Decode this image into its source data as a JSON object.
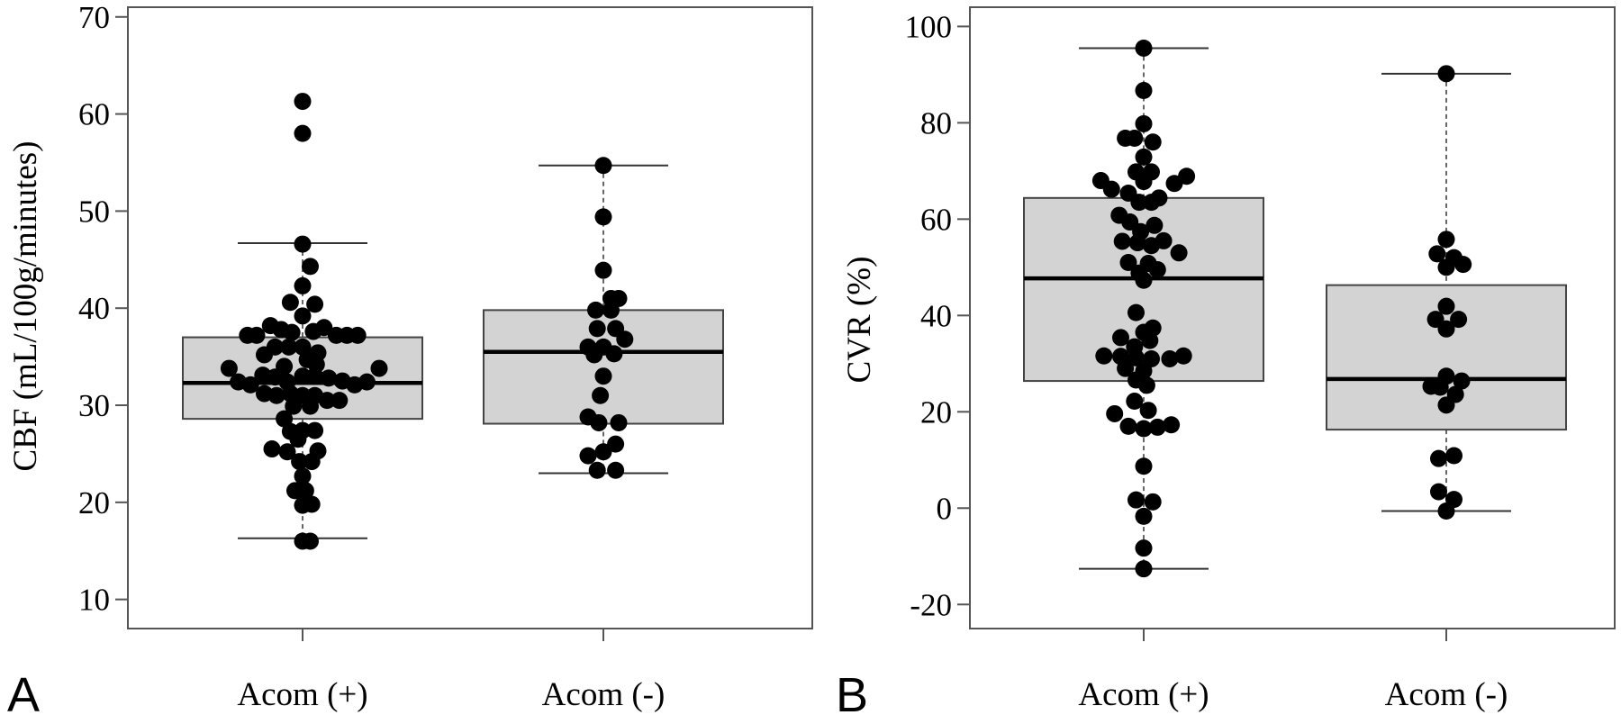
{
  "chart_data": [
    {
      "type": "box",
      "panel_label": "A",
      "ylabel": "CBF (mL/100g/minutes)",
      "ylim": [
        7,
        71
      ],
      "yticks": [
        10,
        20,
        30,
        40,
        50,
        60,
        70
      ],
      "grid": false,
      "categories": [
        "Acom (+)",
        "Acom (-)"
      ],
      "boxes": [
        {
          "category": "Acom (+)",
          "whisker_low": 16.3,
          "q1": 28.6,
          "median": 32.3,
          "q3": 37.0,
          "whisker_high": 46.7
        },
        {
          "category": "Acom (-)",
          "whisker_low": 23.0,
          "q1": 28.1,
          "median": 35.5,
          "q3": 39.8,
          "whisker_high": 54.7
        }
      ],
      "points": [
        [
          {
            "o": 0,
            "y": 61.3
          },
          {
            "o": 0,
            "y": 58.0
          },
          {
            "o": 0,
            "y": 46.6
          },
          {
            "o": 0.5,
            "y": 44.3
          },
          {
            "o": 0,
            "y": 42.3
          },
          {
            "o": -0.8,
            "y": 40.6
          },
          {
            "o": 0.8,
            "y": 40.4
          },
          {
            "o": 0,
            "y": 39.2
          },
          {
            "o": -2.1,
            "y": 38.2
          },
          {
            "o": -1.4,
            "y": 37.8
          },
          {
            "o": 1.4,
            "y": 38.0
          },
          {
            "o": -0.7,
            "y": 37.5
          },
          {
            "o": 0.7,
            "y": 37.6
          },
          {
            "o": -3.6,
            "y": 37.2
          },
          {
            "o": -3.0,
            "y": 37.2
          },
          {
            "o": 2.2,
            "y": 37.2
          },
          {
            "o": 2.9,
            "y": 37.2
          },
          {
            "o": 3.6,
            "y": 37.2
          },
          {
            "o": -1.8,
            "y": 36.0
          },
          {
            "o": -0.9,
            "y": 36.0
          },
          {
            "o": 0,
            "y": 36.0
          },
          {
            "o": 1.0,
            "y": 35.4
          },
          {
            "o": -2.5,
            "y": 35.2
          },
          {
            "o": 0.3,
            "y": 34.7
          },
          {
            "o": -1.2,
            "y": 34.0
          },
          {
            "o": 0.9,
            "y": 34.2
          },
          {
            "o": -4.8,
            "y": 33.8
          },
          {
            "o": 5.0,
            "y": 33.8
          },
          {
            "o": -2.6,
            "y": 33.1
          },
          {
            "o": -1.8,
            "y": 32.9
          },
          {
            "o": 0,
            "y": 33.0
          },
          {
            "o": 0.8,
            "y": 33.0
          },
          {
            "o": 1.7,
            "y": 32.8
          },
          {
            "o": -4.2,
            "y": 32.4
          },
          {
            "o": -3.4,
            "y": 32.1
          },
          {
            "o": -1.0,
            "y": 32.4
          },
          {
            "o": 2.6,
            "y": 32.5
          },
          {
            "o": 3.4,
            "y": 32.1
          },
          {
            "o": 4.2,
            "y": 32.4
          },
          {
            "o": -2.5,
            "y": 31.2
          },
          {
            "o": -1.7,
            "y": 31.0
          },
          {
            "o": -0.8,
            "y": 31.2
          },
          {
            "o": 0,
            "y": 31.0
          },
          {
            "o": 0.8,
            "y": 31.0
          },
          {
            "o": 1.6,
            "y": 30.5
          },
          {
            "o": 2.4,
            "y": 30.5
          },
          {
            "o": -0.6,
            "y": 29.9
          },
          {
            "o": 0.5,
            "y": 29.9
          },
          {
            "o": -1.2,
            "y": 28.6
          },
          {
            "o": 0,
            "y": 27.4
          },
          {
            "o": 0.8,
            "y": 27.4
          },
          {
            "o": -0.8,
            "y": 27.3
          },
          {
            "o": -0.3,
            "y": 26.5
          },
          {
            "o": -2.0,
            "y": 25.5
          },
          {
            "o": -1.0,
            "y": 25.2
          },
          {
            "o": 1.0,
            "y": 25.3
          },
          {
            "o": -0.2,
            "y": 24.2
          },
          {
            "o": 0.6,
            "y": 24.2
          },
          {
            "o": 0,
            "y": 22.7
          },
          {
            "o": -0.5,
            "y": 21.2
          },
          {
            "o": 0.2,
            "y": 21.2
          },
          {
            "o": 0,
            "y": 19.7
          },
          {
            "o": 0.6,
            "y": 19.8
          },
          {
            "o": 0,
            "y": 16.0
          },
          {
            "o": 0.5,
            "y": 16.0
          }
        ],
        [
          {
            "o": 0,
            "y": 54.7
          },
          {
            "o": 0,
            "y": 49.4
          },
          {
            "o": 0,
            "y": 43.9
          },
          {
            "o": 1.0,
            "y": 41.0
          },
          {
            "o": 0.5,
            "y": 41.0
          },
          {
            "o": -0.5,
            "y": 39.8
          },
          {
            "o": 0.5,
            "y": 39.8
          },
          {
            "o": -0.4,
            "y": 37.9
          },
          {
            "o": 0.8,
            "y": 37.9
          },
          {
            "o": 1.4,
            "y": 36.8
          },
          {
            "o": -1.0,
            "y": 36.0
          },
          {
            "o": 0,
            "y": 36.0
          },
          {
            "o": -0.6,
            "y": 35.2
          },
          {
            "o": 0.7,
            "y": 35.3
          },
          {
            "o": 0,
            "y": 33.0
          },
          {
            "o": -0.2,
            "y": 31.0
          },
          {
            "o": -1.0,
            "y": 28.8
          },
          {
            "o": -0.3,
            "y": 28.2
          },
          {
            "o": 1.0,
            "y": 28.2
          },
          {
            "o": 0.8,
            "y": 26.0
          },
          {
            "o": 0,
            "y": 25.2
          },
          {
            "o": -1.0,
            "y": 24.8
          },
          {
            "o": -0.4,
            "y": 23.3
          },
          {
            "o": 0.8,
            "y": 23.3
          }
        ]
      ]
    },
    {
      "type": "box",
      "panel_label": "B",
      "ylabel": "CVR (%)",
      "ylim": [
        -25,
        104
      ],
      "yticks": [
        -20,
        0,
        20,
        40,
        60,
        80,
        100
      ],
      "grid": false,
      "categories": [
        "Acom (+)",
        "Acom (-)"
      ],
      "boxes": [
        {
          "category": "Acom (+)",
          "whisker_low": -12.6,
          "q1": 26.4,
          "median": 47.7,
          "q3": 64.4,
          "whisker_high": 95.5
        },
        {
          "category": "Acom (-)",
          "whisker_low": -0.6,
          "q1": 16.3,
          "median": 26.8,
          "q3": 46.3,
          "whisker_high": 90.2
        }
      ],
      "points": [
        [
          {
            "o": 0,
            "y": 95.5
          },
          {
            "o": 0,
            "y": 86.7
          },
          {
            "o": 0,
            "y": 79.8
          },
          {
            "o": -1.2,
            "y": 76.8
          },
          {
            "o": -0.6,
            "y": 76.8
          },
          {
            "o": 0.6,
            "y": 76.0
          },
          {
            "o": 0,
            "y": 72.9
          },
          {
            "o": -0.5,
            "y": 69.8
          },
          {
            "o": 0.5,
            "y": 69.8
          },
          {
            "o": -2.8,
            "y": 68.0
          },
          {
            "o": 0,
            "y": 67.8
          },
          {
            "o": 2.8,
            "y": 68.9
          },
          {
            "o": 2.0,
            "y": 67.4
          },
          {
            "o": -2.1,
            "y": 66.2
          },
          {
            "o": -1.0,
            "y": 65.4
          },
          {
            "o": 1.0,
            "y": 64.4
          },
          {
            "o": -0.3,
            "y": 63.5
          },
          {
            "o": 0.5,
            "y": 63.5
          },
          {
            "o": -1.6,
            "y": 60.8
          },
          {
            "o": -0.9,
            "y": 59.4
          },
          {
            "o": 0.7,
            "y": 58.7
          },
          {
            "o": -0.2,
            "y": 57.4
          },
          {
            "o": 1.3,
            "y": 55.5
          },
          {
            "o": -1.4,
            "y": 55.4
          },
          {
            "o": -0.4,
            "y": 55.1
          },
          {
            "o": 0.5,
            "y": 54.5
          },
          {
            "o": 2.3,
            "y": 53.0
          },
          {
            "o": -1.0,
            "y": 51.0
          },
          {
            "o": 0.3,
            "y": 50.8
          },
          {
            "o": 0.9,
            "y": 49.5
          },
          {
            "o": -0.3,
            "y": 48.8
          },
          {
            "o": 0,
            "y": 47.3
          },
          {
            "o": -0.5,
            "y": 40.6
          },
          {
            "o": 0.6,
            "y": 37.4
          },
          {
            "o": 0,
            "y": 36.5
          },
          {
            "o": -1.5,
            "y": 35.4
          },
          {
            "o": 0.4,
            "y": 34.8
          },
          {
            "o": -0.6,
            "y": 33.5
          },
          {
            "o": -2.6,
            "y": 31.6
          },
          {
            "o": -1.5,
            "y": 31.5
          },
          {
            "o": -0.5,
            "y": 31.2
          },
          {
            "o": 0.5,
            "y": 31.0
          },
          {
            "o": 2.6,
            "y": 31.6
          },
          {
            "o": 1.7,
            "y": 31.0
          },
          {
            "o": -1.2,
            "y": 29.0
          },
          {
            "o": 0,
            "y": 28.5
          },
          {
            "o": -0.5,
            "y": 26.6
          },
          {
            "o": 0.2,
            "y": 25.5
          },
          {
            "o": -0.6,
            "y": 22.2
          },
          {
            "o": 0.3,
            "y": 20.3
          },
          {
            "o": -1.9,
            "y": 19.6
          },
          {
            "o": -1.0,
            "y": 17.0
          },
          {
            "o": 0,
            "y": 16.5
          },
          {
            "o": 0.9,
            "y": 16.8
          },
          {
            "o": 1.8,
            "y": 17.3
          },
          {
            "o": 0,
            "y": 8.7
          },
          {
            "o": -0.5,
            "y": 1.7
          },
          {
            "o": 0.6,
            "y": 1.3
          },
          {
            "o": 0,
            "y": -1.7
          },
          {
            "o": 0,
            "y": -8.3
          },
          {
            "o": 0,
            "y": -12.6
          }
        ],
        [
          {
            "o": 0,
            "y": 90.2
          },
          {
            "o": 0,
            "y": 55.8
          },
          {
            "o": -0.6,
            "y": 52.8
          },
          {
            "o": 0.5,
            "y": 52.0
          },
          {
            "o": 1.1,
            "y": 50.6
          },
          {
            "o": 0,
            "y": 50.0
          },
          {
            "o": 0,
            "y": 41.9
          },
          {
            "o": -0.7,
            "y": 39.2
          },
          {
            "o": 0.8,
            "y": 39.2
          },
          {
            "o": 0,
            "y": 37.2
          },
          {
            "o": 0,
            "y": 27.4
          },
          {
            "o": 1.0,
            "y": 26.4
          },
          {
            "o": -1.0,
            "y": 25.3
          },
          {
            "o": -0.4,
            "y": 25.1
          },
          {
            "o": 0.6,
            "y": 23.6
          },
          {
            "o": 0,
            "y": 21.4
          },
          {
            "o": 0.5,
            "y": 10.9
          },
          {
            "o": -0.5,
            "y": 10.3
          },
          {
            "o": -0.5,
            "y": 3.4
          },
          {
            "o": 0.5,
            "y": 1.8
          },
          {
            "o": 0,
            "y": -0.6
          }
        ]
      ]
    }
  ]
}
